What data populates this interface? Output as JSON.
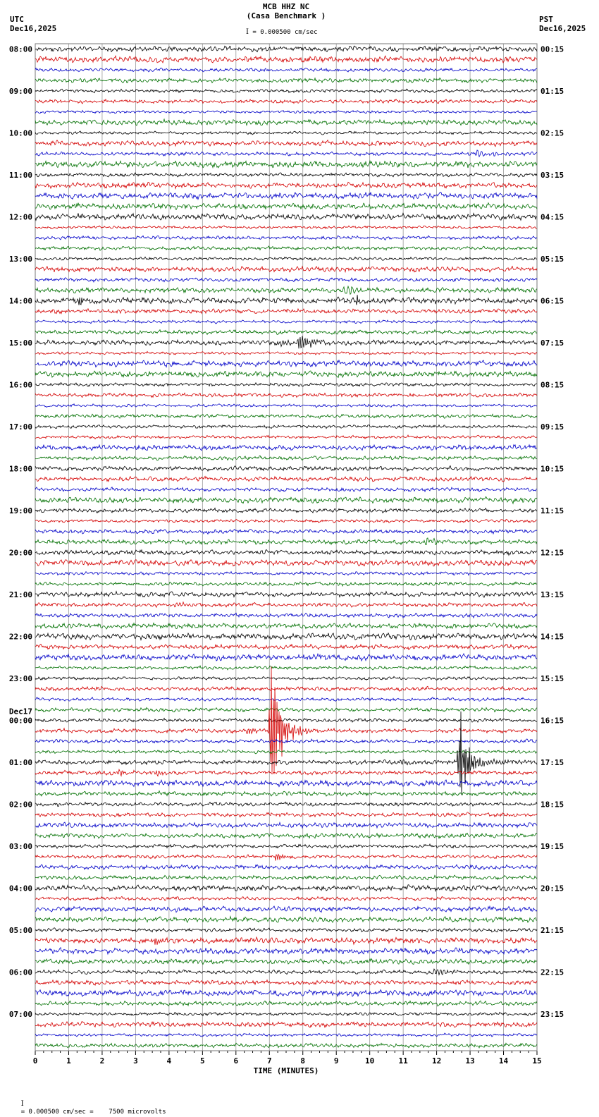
{
  "header": {
    "title": "MCB HHZ NC",
    "subtitle": "(Casa Benchmark )",
    "utc_label": "UTC",
    "utc_date": "Dec16,2025",
    "pst_label": "PST",
    "pst_date": "Dec16,2025",
    "scale_text": "= 0.000500 cm/sec"
  },
  "footer": {
    "text": "= 0.000500 cm/sec =    7500 microvolts"
  },
  "chart_data": {
    "type": "line",
    "subtype": "helicorder-seismogram",
    "station": "MCB HHZ NC",
    "station_description": "(Casa Benchmark )",
    "scale": "= 0.000500 cm/sec",
    "xlabel": "TIME (MINUTES)",
    "x_range": [
      0,
      15
    ],
    "x_ticks": [
      0,
      1,
      2,
      3,
      4,
      5,
      6,
      7,
      8,
      9,
      10,
      11,
      12,
      13,
      14,
      15
    ],
    "x_minor_tick": 0.25,
    "rows": 96,
    "minutes_per_row": 15,
    "traces_per_hour": 4,
    "trace_colors": [
      "#000000",
      "#d40000",
      "#0000c8",
      "#007000"
    ],
    "grid_color": "#999999",
    "grid": "vertical-minute-lines",
    "legend_position": "none",
    "noise_level": 1.7,
    "utc_hour_labels": [
      "08:00",
      "09:00",
      "10:00",
      "11:00",
      "12:00",
      "13:00",
      "14:00",
      "15:00",
      "16:00",
      "17:00",
      "18:00",
      "19:00",
      "20:00",
      "21:00",
      "22:00",
      "23:00",
      "00:00",
      "01:00",
      "02:00",
      "03:00",
      "04:00",
      "05:00",
      "06:00",
      "07:00"
    ],
    "pst_hour_labels": [
      "00:15",
      "01:15",
      "02:15",
      "03:15",
      "04:15",
      "05:15",
      "06:15",
      "07:15",
      "08:15",
      "09:15",
      "10:15",
      "11:15",
      "12:15",
      "13:15",
      "14:15",
      "15:15",
      "16:15",
      "17:15",
      "18:15",
      "19:15",
      "20:15",
      "21:15",
      "22:15",
      "23:15"
    ],
    "utc_date_change": {
      "hour_index": 16,
      "label": "Dec17"
    },
    "events": [
      {
        "row": 10,
        "x": 13.2,
        "amp": 5,
        "dur": 0.9,
        "freq": 9,
        "desc": "minor disturbance 10:30 UTC"
      },
      {
        "row": 23,
        "x": 9.2,
        "amp": 6,
        "dur": 1.2,
        "freq": 8,
        "desc": "minor disturbance 13:45 UTC"
      },
      {
        "row": 24,
        "x": 1.35,
        "amp": 9,
        "dur": 0.1,
        "freq": 30,
        "desc": "spike 14:00 UTC"
      },
      {
        "row": 24,
        "x": 9.65,
        "amp": 10,
        "dur": 0.1,
        "freq": 30,
        "desc": "spike 14:00 UTC"
      },
      {
        "row": 28,
        "x": 7.3,
        "amp": 5,
        "dur": 0.4,
        "freq": 12,
        "desc": "burst onset 15:00 UTC"
      },
      {
        "row": 28,
        "x": 7.9,
        "amp": 11,
        "dur": 0.8,
        "freq": 14,
        "desc": "small event 15:00 UTC"
      },
      {
        "row": 47,
        "x": 11.7,
        "amp": 5,
        "dur": 0.6,
        "freq": 10,
        "desc": "minor disturbance 19:45 UTC"
      },
      {
        "row": 53,
        "x": 4.2,
        "amp": 4,
        "dur": 0.5,
        "freq": 10,
        "desc": "minor disturbance 21:15 UTC"
      },
      {
        "row": 65,
        "x": 6.35,
        "amp": 5,
        "dur": 0.5,
        "freq": 14,
        "desc": "foreshock 00:15 Dec17 UTC"
      },
      {
        "row": 65,
        "x": 7.05,
        "amp": 100,
        "dur": 0.5,
        "freq": 30,
        "desc": "large event peak 00:15 Dec17 UTC"
      },
      {
        "row": 65,
        "x": 7.15,
        "amp": 16,
        "dur": 1.2,
        "freq": 12,
        "desc": "large event coda 00:15 Dec17 UTC"
      },
      {
        "row": 68,
        "x": 10.9,
        "amp": 4,
        "dur": 0.6,
        "freq": 12,
        "desc": "precursor 01:00 Dec17 UTC"
      },
      {
        "row": 68,
        "x": 12.68,
        "amp": 70,
        "dur": 0.45,
        "freq": 28,
        "desc": "large event peak 01:00 Dec17 UTC"
      },
      {
        "row": 68,
        "x": 12.78,
        "amp": 13,
        "dur": 1.2,
        "freq": 12,
        "desc": "large event coda 01:00 Dec17 UTC"
      },
      {
        "row": 69,
        "x": 2.5,
        "amp": 4,
        "dur": 0.4,
        "freq": 12,
        "desc": "minor disturbance 01:15 Dec17 UTC"
      },
      {
        "row": 69,
        "x": 3.6,
        "amp": 4,
        "dur": 0.4,
        "freq": 12,
        "desc": "minor disturbance 01:15 Dec17 UTC"
      },
      {
        "row": 77,
        "x": 7.2,
        "amp": 6,
        "dur": 0.3,
        "freq": 16,
        "desc": "minor spike 03:15 Dec17 UTC"
      },
      {
        "row": 85,
        "x": 3.6,
        "amp": 6,
        "dur": 0.3,
        "freq": 16,
        "desc": "minor spike 05:15 Dec17 UTC"
      },
      {
        "row": 88,
        "x": 11.9,
        "amp": 5,
        "dur": 1.0,
        "freq": 10,
        "desc": "disturbance 06:00 Dec17 UTC"
      }
    ]
  }
}
